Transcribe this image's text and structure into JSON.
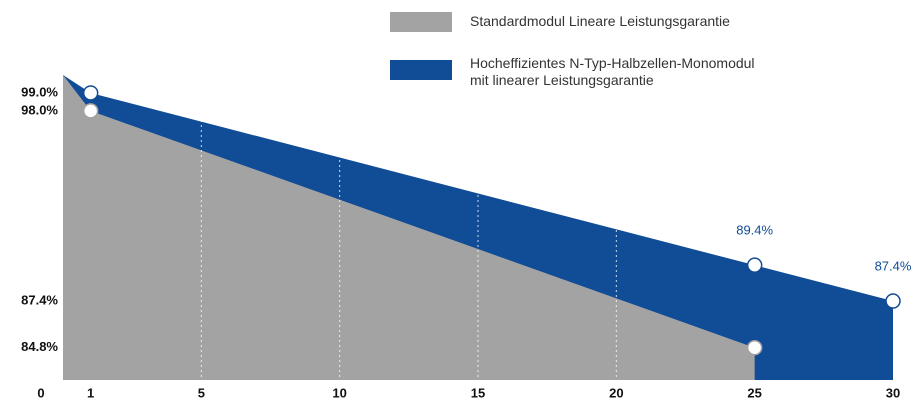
{
  "chart_data": {
    "type": "area",
    "series": [
      {
        "name": "Standardmodul Lineare Leistungsgarantie",
        "color": "#a3a3a3",
        "x": [
          0,
          1,
          25
        ],
        "values": [
          100,
          98,
          84.8
        ]
      },
      {
        "name": "Hocheffizientes N-Typ-Halbzellen-Monomodul\nmit linearer Leistungsgarantie",
        "color": "#114c96",
        "x": [
          0,
          1,
          25,
          30
        ],
        "values": [
          100,
          99,
          89.4,
          87.4
        ],
        "value_labels": [
          null,
          null,
          "89.4%",
          "87.4%"
        ]
      }
    ],
    "xlim": [
      0,
      30
    ],
    "xticks": [
      0,
      1,
      5,
      10,
      15,
      20,
      25,
      30
    ],
    "ylim": [
      83,
      100
    ],
    "yticks": [
      {
        "value": 99,
        "label": "99.0%"
      },
      {
        "value": 98,
        "label": "98.0%"
      },
      {
        "value": 87.4,
        "label": "87.4%"
      },
      {
        "value": 84.8,
        "label": "84.8%"
      }
    ],
    "grid": true
  }
}
